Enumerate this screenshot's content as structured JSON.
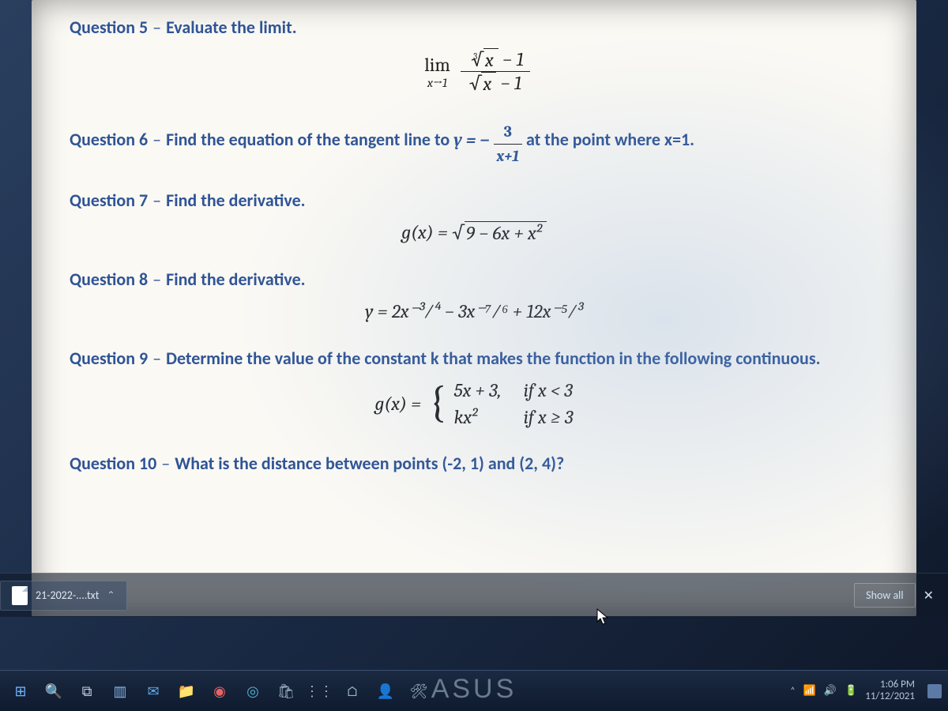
{
  "colors": {
    "heading": "#2f5496",
    "text": "#333333",
    "page_bg": "#fbf9f4",
    "desktop_bg": "#1a2a45",
    "taskbar_bg": "#0e1a2e",
    "chip_text": "#dfe8f2"
  },
  "questions": {
    "q5": {
      "label": "Question 5",
      "prompt": "Evaluate the limit."
    },
    "q5_math_lim": "lim",
    "q5_math_sub": "x→1",
    "q5_num_radicand": "x",
    "q5_den_radicand": "x",
    "q5_minus1a": " − 1",
    "q5_minus1b": " − 1",
    "q6": {
      "label": "Question 6",
      "prompt_a": "Find the equation of the tangent line to ",
      "y_eq": "y = −",
      "frac_num": "3",
      "frac_den": "x+1",
      "prompt_b": " at the point where x=1."
    },
    "q7": {
      "label": "Question 7",
      "prompt": "Find the derivative."
    },
    "q7_math_lhs": "g(x) = ",
    "q7_radicand": "9 − 6x + x²",
    "q8": {
      "label": "Question 8",
      "prompt": "Find the derivative."
    },
    "q8_math": "y = 2x⁻³∕⁴ − 3x⁻⁷∕⁶ + 12x⁻⁵∕³",
    "q9": {
      "label": "Question 9",
      "prompt": "Determine the value of the constant k that makes the function in the following continuous."
    },
    "q9_lhs": "g(x) = ",
    "q9_r1_expr": "5x + 3,",
    "q9_r1_cond": "if x < 3",
    "q9_r2_expr": "kx²",
    "q9_r2_cond": "if x ≥ 3",
    "q10": {
      "label": "Question 10",
      "prompt": "What is the distance between points (-2, 1) and (2, 4)?"
    }
  },
  "download_bar": {
    "filename": "21-2022-....txt",
    "chevron": "⌃",
    "show_all": "Show all",
    "close": "✕"
  },
  "taskbar": {
    "icons": [
      {
        "name": "start-icon",
        "glyph": "⊞",
        "color": "#6fb3ff"
      },
      {
        "name": "search-icon",
        "glyph": "🔍",
        "color": "#c8d4e2"
      },
      {
        "name": "task-view-icon",
        "glyph": "⧉",
        "color": "#c8d4e2"
      },
      {
        "name": "app1-icon",
        "glyph": "▥",
        "color": "#86b4e8"
      },
      {
        "name": "mail-icon",
        "glyph": "✉",
        "color": "#5fa8e8"
      },
      {
        "name": "folder-icon",
        "glyph": "📁",
        "color": "#e8c872"
      },
      {
        "name": "chrome-icon",
        "glyph": "◉",
        "color": "#e86464"
      },
      {
        "name": "edge-icon",
        "glyph": "◎",
        "color": "#53b3d0"
      },
      {
        "name": "store-icon",
        "glyph": "🛍",
        "color": "#9fb3cc"
      },
      {
        "name": "app2-icon",
        "glyph": "⋮⋮",
        "color": "#9fb3cc"
      },
      {
        "name": "app3-icon",
        "glyph": "⌂",
        "color": "#9fb3cc"
      },
      {
        "name": "app4-icon",
        "glyph": "👤",
        "color": "#9fb3cc"
      },
      {
        "name": "app5-icon",
        "glyph": "🛠",
        "color": "#9fb3cc"
      }
    ],
    "tray": {
      "chevron": "˄",
      "wifi": "📶",
      "sound": "🔊",
      "battery": "🔋"
    },
    "clock": {
      "time": "1:06 PM",
      "date": "11/12/2021"
    }
  },
  "bezel": {
    "brand": "ASUS"
  }
}
